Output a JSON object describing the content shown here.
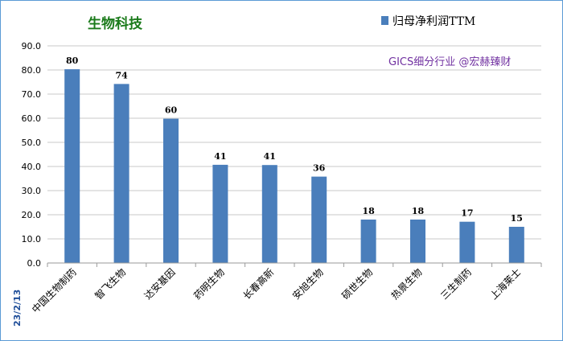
{
  "chart_data": {
    "type": "bar",
    "title": "生物科技",
    "legend": {
      "label": "归母净利润TTM",
      "position": "top-right"
    },
    "annotation": "GICS细分行业 @宏赫臻财",
    "date": "23/2/13",
    "categories": [
      "中国生物制药",
      "智飞生物",
      "达安基因",
      "药明生物",
      "长春高新",
      "安旭生物",
      "硕世生物",
      "热景生物",
      "三生制药",
      "上海莱士"
    ],
    "values": [
      80,
      74,
      60,
      41,
      41,
      36,
      18,
      18,
      17,
      15
    ],
    "bar_values": [
      80.3,
      74.2,
      59.8,
      40.7,
      40.6,
      35.8,
      18.0,
      18.0,
      17.1,
      15.0
    ],
    "ylim": [
      0,
      90
    ],
    "yticks": [
      "0.0",
      "10.0",
      "20.0",
      "30.0",
      "40.0",
      "50.0",
      "60.0",
      "70.0",
      "80.0",
      "90.0"
    ],
    "grid": "horizontal",
    "colors": {
      "bar": "#4a7ebb",
      "grid": "#c8c8c8",
      "title": "#1a7a1a",
      "annotation": "#7030a0",
      "border": "#5b9bd5"
    }
  }
}
